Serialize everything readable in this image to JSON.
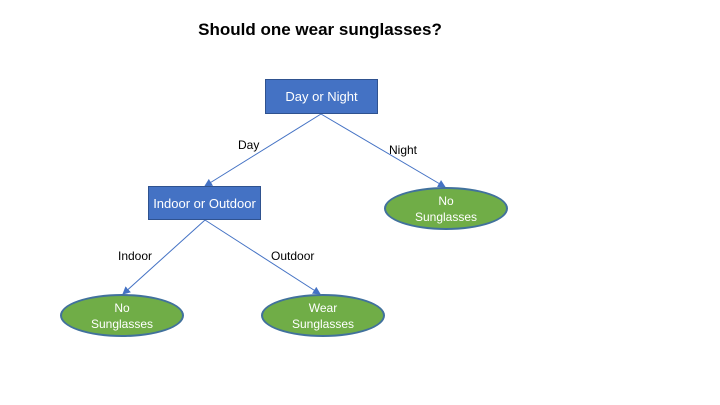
{
  "title": "Should one wear sunglasses?",
  "nodes": {
    "root": {
      "label": "Day or Night"
    },
    "indoor_outdoor": {
      "label": "Indoor or Outdoor"
    },
    "night_leaf": {
      "line1": "No",
      "line2": "Sunglasses"
    },
    "indoor_leaf": {
      "line1": "No",
      "line2": "Sunglasses"
    },
    "outdoor_leaf": {
      "line1": "Wear",
      "line2": "Sunglasses"
    }
  },
  "edges": {
    "day": "Day",
    "night": "Night",
    "indoor": "Indoor",
    "outdoor": "Outdoor"
  },
  "colors": {
    "decision_fill": "#4472c4",
    "leaf_fill": "#70ad47",
    "leaf_border": "#41719c",
    "edge": "#4472c4"
  }
}
